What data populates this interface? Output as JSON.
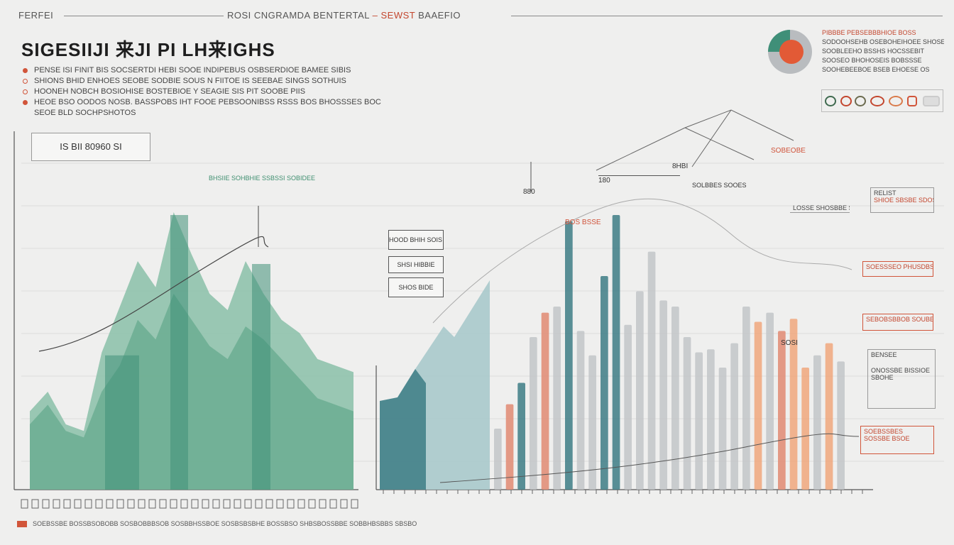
{
  "header": {
    "left_label": "FERFEI",
    "center_label_a": "ROSI CNGRAMDA BENTERTAL",
    "center_label_b": "– SEWST",
    "center_label_c": "BAAEFIO"
  },
  "title": "SIGESIIJI 来JI PI LH来IGHS",
  "bullets": [
    "PENSE ISI FINIT BIS SOCSERTDI  HEBI SOOE INDIPEBUS OSBSERDIOE BAMEE SIBIS",
    "SHIONS BHID ENHOES  SEOBE SODBIE SOUS  N FIITOE  IS SEEBAE SINGS SOTHUIS",
    "HOONEH NOBCH BOSIOHISE BOSTEBIOE Y SEAGIE  SIS  PIT SOOBE PIIS",
    "HEOE BSO OODOS  NOSB. BASSPOBS IHT FOOE PEBSOONIBSS  RSSS  BOS BHOSSSES BOC",
    "SEOE BLD SOCHPSHOTOS"
  ],
  "left_chart": {
    "box_label": "IS BII 80960 SI"
  },
  "right_legend": {
    "lines": [
      "PIBBBE PEBSEBBBHIOE BOSS",
      "SODOOHSEHB OSEBOHEIHOEE SHOSE",
      "SOOBLEEHO BSSHS HOCSSEBIT",
      "SOOSEO BHOHOSEIS BOBSSSE",
      "SOOHEBEEBOE BSEB EHOESE OS"
    ]
  },
  "side_cards": [
    {
      "title": "RELIST",
      "body": "SHIOE SBSBE SDOSE"
    },
    {
      "title": "LOSSE SHOSBBE SBE",
      "body": ""
    },
    {
      "title": "SOESSSEO PHUSDBSE",
      "body": ""
    },
    {
      "title": "SEBOBSBBOB SOUBE",
      "body": ""
    },
    {
      "title": "BENSEE",
      "body": "ONOSSBE BISSIOE SBOHE"
    },
    {
      "title": "SOEBSSBES",
      "body": "SOSSBE BSOE"
    }
  ],
  "annotations": {
    "mid_boxes": [
      "HOOD BHIH SOIS SEBOSE",
      "SHSI HIBBIE",
      "SHOS  BIDE"
    ],
    "green_note": "BHSIIE SOHBHIE SSBSSI SOBIDEE",
    "label_a": "880",
    "label_b": "180",
    "label_c": "8HBI",
    "label_d": "SOBEOBE",
    "label_e": "SOLBBES SOOES",
    "label_f": "BOS BSSE",
    "label_g": "SOSI"
  },
  "footer": {
    "text": "SOEBSSBE BOSSBSOBOBB SOSBOBBBSOB SOSBBHSSBOE SOSBSBSBHE BOSSBSO SHBSBOSSBBE SOBBHBSBBS SBSBO"
  },
  "colors": {
    "background": "#efefee",
    "teal_dark": "#3f8f78",
    "teal_light": "#8fc2ac",
    "teal_mid": "#66a98e",
    "blue_dark": "#3d7d85",
    "blue_light": "#a9c9cb",
    "salmon": "#e08a72",
    "orange": "#f0a77c",
    "grey": "#c2c6c8",
    "accent_red": "#d1553a"
  },
  "chart_data": [
    {
      "type": "area",
      "series": [
        {
          "values": [
            24,
            30,
            20,
            18,
            42,
            56,
            70,
            62,
            85,
            72,
            60,
            55,
            70,
            60,
            52,
            48,
            40,
            38,
            36
          ]
        },
        {
          "values": [
            20,
            26,
            18,
            16,
            30,
            38,
            52,
            46,
            60,
            52,
            44,
            40,
            50,
            46,
            40,
            34,
            28,
            26,
            24
          ]
        }
      ],
      "ylim": [
        0,
        100
      ]
    },
    {
      "type": "bar",
      "values": [
        20,
        28,
        35,
        50,
        58,
        60,
        88,
        52,
        44,
        70,
        90,
        54,
        65,
        78,
        62,
        60,
        50,
        45,
        46,
        40,
        48,
        60,
        55,
        58,
        52,
        56,
        40,
        44,
        48,
        42
      ],
      "ylim": [
        0,
        100
      ]
    }
  ]
}
